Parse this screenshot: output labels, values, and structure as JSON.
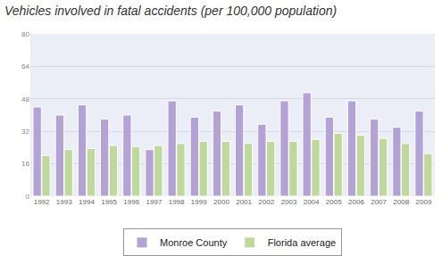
{
  "chart_data": {
    "type": "bar",
    "title": "Vehicles involved in fatal accidents (per 100,000 population)",
    "categories": [
      "1992",
      "1993",
      "1994",
      "1995",
      "1996",
      "1997",
      "1998",
      "1999",
      "2000",
      "2001",
      "2002",
      "2003",
      "2004",
      "2005",
      "2006",
      "2007",
      "2008",
      "2009"
    ],
    "series": [
      {
        "name": "Monroe County",
        "color": "#b3a2d6",
        "values": [
          44,
          40,
          45,
          38,
          40,
          23,
          47,
          39,
          42,
          45,
          35.5,
          47,
          51,
          39,
          47,
          38,
          34,
          42
        ]
      },
      {
        "name": "Florida average",
        "color": "#bfd99b",
        "values": [
          20,
          23,
          23.5,
          25,
          24.5,
          25,
          26,
          27,
          27,
          26,
          27,
          27,
          28,
          31,
          30,
          28.5,
          26,
          21
        ]
      }
    ],
    "ylim": [
      0,
      80
    ],
    "yticks": [
      0,
      16,
      32,
      48,
      64,
      80
    ],
    "grid": true,
    "legend": "bottom"
  }
}
